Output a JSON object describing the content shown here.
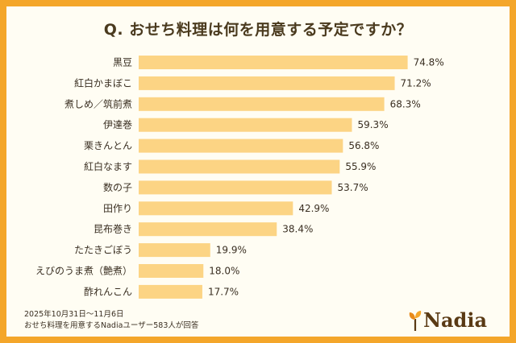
{
  "title": "Q. おせち料理は何を用意する予定ですか？",
  "footer": {
    "line1": "2025年10月31日～11月6日",
    "line2": "おせち料理を用意するNadiaユーザー583人が回答"
  },
  "logo": {
    "text": "Nadia",
    "icon": "sprout-icon"
  },
  "colors": {
    "bar": "#fcd484",
    "border": "#f4a62a",
    "background": "#fffdf3",
    "text": "#3a2f22"
  },
  "chart_data": {
    "type": "bar",
    "orientation": "horizontal",
    "unit": "%",
    "categories": [
      "黒豆",
      "紅白かまぼこ",
      "煮しめ／筑前煮",
      "伊達巻",
      "栗きんとん",
      "紅白なます",
      "数の子",
      "田作り",
      "昆布巻き",
      "たたきごぼう",
      "えびのうま煮（艶煮）",
      "酢れんこん"
    ],
    "values": [
      74.8,
      71.2,
      68.3,
      59.3,
      56.8,
      55.9,
      53.7,
      42.9,
      38.4,
      19.9,
      18.0,
      17.7
    ],
    "labels": [
      "74.8%",
      "71.2%",
      "68.3%",
      "59.3%",
      "56.8%",
      "55.9%",
      "53.7%",
      "42.9%",
      "38.4%",
      "19.9%",
      "18.0%",
      "17.7%"
    ],
    "xlim": [
      0,
      100
    ],
    "grid": false,
    "legend": "none"
  }
}
